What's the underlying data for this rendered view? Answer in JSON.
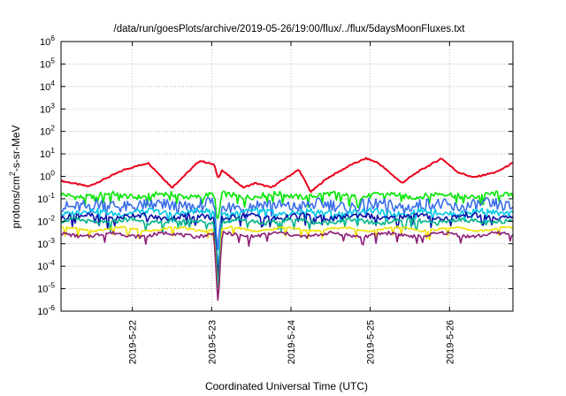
{
  "chart_data": {
    "type": "line",
    "title": "/data/run/goesPlots/archive/2019-05-26/19:00/flux/../flux/5daysMoonFluxes.txt",
    "xlabel": "Coordinated Universal Time (UTC)",
    "ylabel": "protons/cm2-s-sr-MeV",
    "ylabel_parts": {
      "base": "protons/cm",
      "sup": "2",
      "rest": "-s-sr-MeV"
    },
    "log_y": true,
    "grid": true,
    "xlim": [
      21.1,
      26.8
    ],
    "ylim_exp": [
      -6,
      6
    ],
    "y_tick_exponents": [
      -6,
      -5,
      -4,
      -3,
      -2,
      -1,
      0,
      1,
      2,
      3,
      4,
      5,
      6
    ],
    "y_tick_base": "10",
    "x_ticks": [
      {
        "value": 22,
        "label": "2019-5-22"
      },
      {
        "value": 23,
        "label": "2019-5-23"
      },
      {
        "value": 24,
        "label": "2019-5-24"
      },
      {
        "value": 25,
        "label": "2019-5-25"
      },
      {
        "value": 26,
        "label": "2019-5-26"
      }
    ],
    "series": [
      {
        "color": "#e8001c",
        "base": 0.0,
        "wave": 0.5,
        "jitter": 0.06,
        "dip": 0.5,
        "key_x": [
          21.1,
          21.45,
          21.6,
          21.9,
          22.2,
          22.5,
          22.85,
          23.05,
          23.4,
          23.55,
          23.75,
          24.1,
          24.25,
          24.45,
          24.75,
          24.95,
          25.1,
          25.4,
          25.6,
          25.9,
          26.1,
          26.3,
          26.6,
          26.8
        ],
        "key_y": [
          -0.2,
          -0.45,
          -0.2,
          0.3,
          0.6,
          -0.5,
          0.7,
          0.5,
          -0.5,
          -0.3,
          -0.5,
          0.3,
          -0.7,
          -0.1,
          0.5,
          0.8,
          0.6,
          -0.3,
          0.2,
          0.8,
          0.2,
          -0.05,
          0.2,
          0.6
        ]
      },
      {
        "color": "#00e600",
        "base": -0.85,
        "wave": 0.0,
        "jitter": 0.12,
        "dip": 1.2
      },
      {
        "color": "#3a6ee8",
        "base": -1.3,
        "wave": 0.0,
        "jitter": 0.28,
        "dip": 2.0
      },
      {
        "color": "#00c8e6",
        "base": -1.6,
        "wave": 0.0,
        "jitter": 0.12,
        "dip": 2.6
      },
      {
        "color": "#0a10a8",
        "base": -1.8,
        "wave": 0.0,
        "jitter": 0.12,
        "dip": 2.8
      },
      {
        "color": "#00b48c",
        "base": -2.0,
        "wave": 0.0,
        "jitter": 0.1,
        "dip": 3.0
      },
      {
        "color": "#f0e000",
        "base": -2.35,
        "wave": 0.0,
        "jitter": 0.05,
        "dip": 3.2
      },
      {
        "color": "#8c1e78",
        "base": -2.6,
        "wave": 0.0,
        "jitter": 0.08,
        "dip": 3.2
      }
    ]
  }
}
